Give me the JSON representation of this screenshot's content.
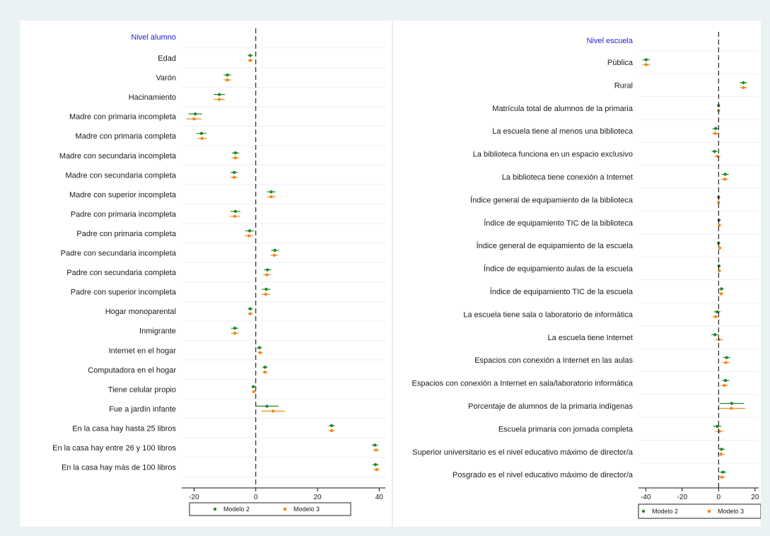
{
  "chart_data": [
    {
      "type": "scatter",
      "subtype": "coefficient-plot",
      "heading": "Nivel alumno",
      "xlim": [
        -24,
        42
      ],
      "xticks": [
        -20,
        0,
        20,
        40
      ],
      "reference_line": 0,
      "series": [
        {
          "name": "Modelo 2",
          "color": "#1f8a2a"
        },
        {
          "name": "Modelo 3",
          "color": "#f08a1a"
        }
      ],
      "rows": [
        {
          "label": "Edad",
          "m2": {
            "est": -1.8,
            "lo": -2.6,
            "hi": -1.0
          },
          "m3": {
            "est": -1.8,
            "lo": -2.6,
            "hi": -1.0
          }
        },
        {
          "label": "Varón",
          "m2": {
            "est": -9.2,
            "lo": -10.4,
            "hi": -8.0
          },
          "m3": {
            "est": -9.2,
            "lo": -10.4,
            "hi": -8.0
          }
        },
        {
          "label": "Hacinamiento",
          "m2": {
            "est": -11.8,
            "lo": -13.6,
            "hi": -10.0
          },
          "m3": {
            "est": -11.8,
            "lo": -13.6,
            "hi": -10.0
          }
        },
        {
          "label": "Madre con primaria incompleta",
          "m2": {
            "est": -19.6,
            "lo": -21.8,
            "hi": -17.4
          },
          "m3": {
            "est": -20.0,
            "lo": -22.4,
            "hi": -17.6
          }
        },
        {
          "label": "Madre con primaria completa",
          "m2": {
            "est": -17.6,
            "lo": -19.2,
            "hi": -16.0
          },
          "m3": {
            "est": -17.4,
            "lo": -19.0,
            "hi": -15.8
          }
        },
        {
          "label": "Madre con secundaria incompleta",
          "m2": {
            "est": -6.6,
            "lo": -7.8,
            "hi": -5.4
          },
          "m3": {
            "est": -6.6,
            "lo": -7.8,
            "hi": -5.4
          }
        },
        {
          "label": "Madre con secundaria completa",
          "m2": {
            "est": -7.0,
            "lo": -8.2,
            "hi": -5.8
          },
          "m3": {
            "est": -7.0,
            "lo": -8.2,
            "hi": -5.8
          }
        },
        {
          "label": "Madre con superior incompleta",
          "m2": {
            "est": 5.0,
            "lo": 3.6,
            "hi": 6.4
          },
          "m3": {
            "est": 5.0,
            "lo": 3.6,
            "hi": 6.4
          }
        },
        {
          "label": "Padre con primaria incompleta",
          "m2": {
            "est": -6.6,
            "lo": -8.2,
            "hi": -5.0
          },
          "m3": {
            "est": -6.8,
            "lo": -8.4,
            "hi": -5.2
          }
        },
        {
          "label": "Padre con primaria completa",
          "m2": {
            "est": -2.0,
            "lo": -3.4,
            "hi": -0.6
          },
          "m3": {
            "est": -2.2,
            "lo": -3.6,
            "hi": -0.8
          }
        },
        {
          "label": "Padre con secundaria incompleta",
          "m2": {
            "est": 6.2,
            "lo": 5.0,
            "hi": 7.4
          },
          "m3": {
            "est": 6.0,
            "lo": 4.8,
            "hi": 7.2
          }
        },
        {
          "label": "Padre con secundaria completa",
          "m2": {
            "est": 3.8,
            "lo": 2.6,
            "hi": 5.0
          },
          "m3": {
            "est": 3.6,
            "lo": 2.4,
            "hi": 4.8
          }
        },
        {
          "label": "Padre con superior incompleta",
          "m2": {
            "est": 3.4,
            "lo": 2.0,
            "hi": 4.8
          },
          "m3": {
            "est": 3.2,
            "lo": 1.8,
            "hi": 4.6
          }
        },
        {
          "label": "Hogar monoparental",
          "m2": {
            "est": -1.8,
            "lo": -2.6,
            "hi": -1.0
          },
          "m3": {
            "est": -1.8,
            "lo": -2.6,
            "hi": -1.0
          }
        },
        {
          "label": "Inmigrante",
          "m2": {
            "est": -6.8,
            "lo": -8.0,
            "hi": -5.6
          },
          "m3": {
            "est": -6.8,
            "lo": -8.0,
            "hi": -5.6
          }
        },
        {
          "label": "Internet en el hogar",
          "m2": {
            "est": 1.2,
            "lo": 0.4,
            "hi": 2.0
          },
          "m3": {
            "est": 1.4,
            "lo": 0.6,
            "hi": 2.2
          }
        },
        {
          "label": "Computadora en el hogar",
          "m2": {
            "est": 3.0,
            "lo": 2.2,
            "hi": 3.8
          },
          "m3": {
            "est": 3.0,
            "lo": 2.2,
            "hi": 3.8
          }
        },
        {
          "label": "Tiene celular propio",
          "m2": {
            "est": -0.8,
            "lo": -1.4,
            "hi": -0.2
          },
          "m3": {
            "est": -0.6,
            "lo": -1.2,
            "hi": 0.0
          }
        },
        {
          "label": "Fue a jardín infante",
          "m2": {
            "est": 3.6,
            "lo": 0.0,
            "hi": 7.4
          },
          "m3": {
            "est": 5.6,
            "lo": 1.8,
            "hi": 9.4
          }
        },
        {
          "label": "En la casa hay hasta 25 libros",
          "m2": {
            "est": 24.6,
            "lo": 23.6,
            "hi": 25.6
          },
          "m3": {
            "est": 24.6,
            "lo": 23.6,
            "hi": 25.6
          }
        },
        {
          "label": "En la casa hay entre 26 y 100 libros",
          "m2": {
            "est": 38.6,
            "lo": 37.6,
            "hi": 39.6
          },
          "m3": {
            "est": 39.0,
            "lo": 38.0,
            "hi": 40.0
          }
        },
        {
          "label": "En la casa hay más de 100 libros",
          "m2": {
            "est": 38.8,
            "lo": 37.8,
            "hi": 39.8
          },
          "m3": {
            "est": 39.2,
            "lo": 38.2,
            "hi": 40.2
          }
        }
      ]
    },
    {
      "type": "scatter",
      "subtype": "coefficient-plot",
      "heading": "Nivel escuela",
      "xlim": [
        -44,
        22
      ],
      "xticks": [
        -40,
        -20,
        0,
        20
      ],
      "reference_line": 0,
      "series": [
        {
          "name": "Modelo 2",
          "color": "#1f8a2a"
        },
        {
          "name": "Modelo 3",
          "color": "#f08a1a"
        }
      ],
      "rows": [
        {
          "label": "Pública",
          "m2": {
            "est": -39.8,
            "lo": -41.8,
            "hi": -37.8
          },
          "m3": {
            "est": -39.8,
            "lo": -41.8,
            "hi": -37.8
          }
        },
        {
          "label": "Rural",
          "m2": {
            "est": 13.6,
            "lo": 11.6,
            "hi": 15.6
          },
          "m3": {
            "est": 13.6,
            "lo": 11.6,
            "hi": 15.6
          }
        },
        {
          "label": "Matrícula total de alumnos de la primaria",
          "m2": {
            "est": 0.0,
            "lo": -0.3,
            "hi": 0.3
          },
          "m3": {
            "est": 0.0,
            "lo": -0.3,
            "hi": 0.3
          }
        },
        {
          "label": "La escuela tiene al menos una biblioteca",
          "m2": {
            "est": -1.6,
            "lo": -3.4,
            "hi": 0.2
          },
          "m3": {
            "est": -1.8,
            "lo": -3.6,
            "hi": 0.0
          }
        },
        {
          "label": "La biblioteca funciona en un espacio exclusivo",
          "m2": {
            "est": -2.2,
            "lo": -3.8,
            "hi": -0.6
          },
          "m3": {
            "est": -0.6,
            "lo": -2.2,
            "hi": 1.0
          }
        },
        {
          "label": "La biblioteca tiene conexión a Internet",
          "m2": {
            "est": 3.6,
            "lo": 1.6,
            "hi": 5.6
          },
          "m3": {
            "est": 3.4,
            "lo": 1.4,
            "hi": 5.4
          }
        },
        {
          "label": "Índice general de equipamiento de la biblioteca",
          "m2": {
            "est": 0.0,
            "lo": -0.6,
            "hi": 0.6
          },
          "m3": {
            "est": 0.0,
            "lo": -0.6,
            "hi": 0.6
          }
        },
        {
          "label": "Índice de equipamiento TIC de la biblioteca",
          "m2": {
            "est": 0.2,
            "lo": -0.4,
            "hi": 0.8
          },
          "m3": {
            "est": 0.4,
            "lo": -0.2,
            "hi": 1.0
          }
        },
        {
          "label": "Índice general de equipamiento de la escuela",
          "m2": {
            "est": 0.0,
            "lo": -0.6,
            "hi": 0.6
          },
          "m3": {
            "est": 0.6,
            "lo": 0.0,
            "hi": 1.2
          }
        },
        {
          "label": "Índice de equipamiento aulas de la escuela",
          "m2": {
            "est": 0.2,
            "lo": -0.4,
            "hi": 0.8
          },
          "m3": {
            "est": 0.4,
            "lo": -0.2,
            "hi": 1.0
          }
        },
        {
          "label": "Índice de equipamiento TIC de la escuela",
          "m2": {
            "est": 1.6,
            "lo": 0.4,
            "hi": 2.8
          },
          "m3": {
            "est": 1.4,
            "lo": 0.2,
            "hi": 2.6
          }
        },
        {
          "label": "La escuela tiene sala o laboratorio de informática",
          "m2": {
            "est": -0.8,
            "lo": -2.6,
            "hi": 1.0
          },
          "m3": {
            "est": -1.6,
            "lo": -3.4,
            "hi": 0.2
          }
        },
        {
          "label": "La escuela tiene Internet",
          "m2": {
            "est": -2.0,
            "lo": -4.0,
            "hi": 0.0
          },
          "m3": {
            "est": 0.2,
            "lo": -1.8,
            "hi": 2.2
          }
        },
        {
          "label": "Espacios con conexión a Internet en las aulas",
          "m2": {
            "est": 4.4,
            "lo": 2.4,
            "hi": 6.4
          },
          "m3": {
            "est": 4.0,
            "lo": 2.0,
            "hi": 6.0
          }
        },
        {
          "label": "Espacios con conexión a Internet en sala/laboratorio informática",
          "m2": {
            "est": 3.8,
            "lo": 1.8,
            "hi": 5.8
          },
          "m3": {
            "est": 3.2,
            "lo": 1.2,
            "hi": 5.2
          }
        },
        {
          "label": "Porcentaje de alumnos de la primaria indígenas",
          "m2": {
            "est": 7.2,
            "lo": 0.4,
            "hi": 14.0
          },
          "m3": {
            "est": 7.0,
            "lo": -0.6,
            "hi": 14.6
          }
        },
        {
          "label": "Escuela primaria con jornada completa",
          "m2": {
            "est": -0.8,
            "lo": -3.0,
            "hi": 1.4
          },
          "m3": {
            "est": 0.4,
            "lo": -1.8,
            "hi": 2.6
          }
        },
        {
          "label": "Superior universitario es el nivel educativo máximo de director/a",
          "m2": {
            "est": 1.6,
            "lo": -0.2,
            "hi": 3.4
          },
          "m3": {
            "est": 1.4,
            "lo": -0.4,
            "hi": 3.2
          }
        },
        {
          "label": "Posgrado es el nivel educativo máximo de director/a",
          "m2": {
            "est": 2.4,
            "lo": 0.6,
            "hi": 4.2
          },
          "m3": {
            "est": 1.8,
            "lo": 0.0,
            "hi": 3.6
          }
        }
      ]
    }
  ]
}
